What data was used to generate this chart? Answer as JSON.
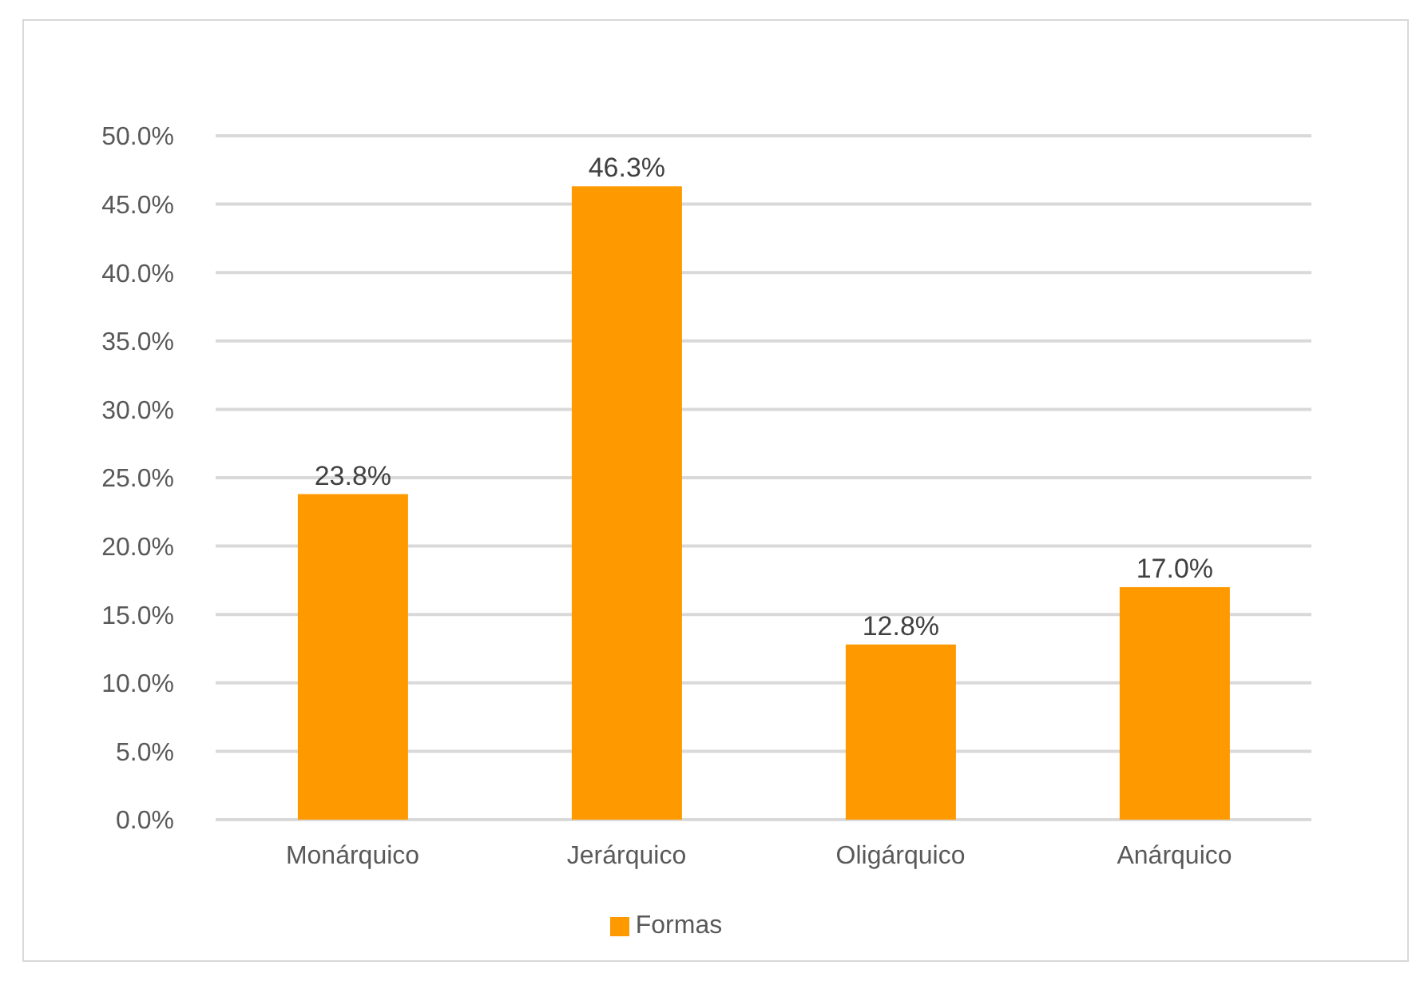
{
  "chart_data": {
    "type": "bar",
    "categories": [
      "Monárquico",
      "Jerárquico",
      "Oligárquico",
      "Anárquico"
    ],
    "series": [
      {
        "name": "Formas",
        "color": "#ff9900",
        "values": [
          23.8,
          46.3,
          12.8,
          17.0
        ],
        "value_labels": [
          "23.8%",
          "46.3%",
          "12.8%",
          "17.0%"
        ]
      }
    ],
    "ylim": [
      0,
      50
    ],
    "yticks": [
      {
        "value": 0,
        "label": "0.0%"
      },
      {
        "value": 5,
        "label": "5.0%"
      },
      {
        "value": 10,
        "label": "10.0%"
      },
      {
        "value": 15,
        "label": "15.0%"
      },
      {
        "value": 20,
        "label": "20.0%"
      },
      {
        "value": 25,
        "label": "25.0%"
      },
      {
        "value": 30,
        "label": "30.0%"
      },
      {
        "value": 35,
        "label": "35.0%"
      },
      {
        "value": 40,
        "label": "40.0%"
      },
      {
        "value": 45,
        "label": "45.0%"
      },
      {
        "value": 50,
        "label": "50.0%"
      }
    ],
    "grid": "y",
    "legend": "bottom"
  }
}
